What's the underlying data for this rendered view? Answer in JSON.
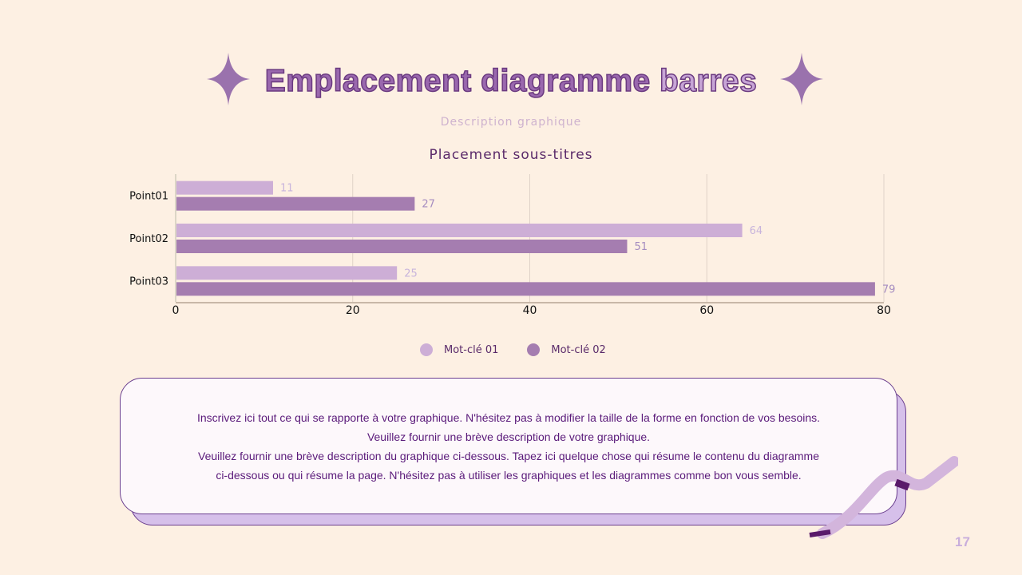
{
  "title_main": "Emplacement diagramme",
  "title_accent": "barres",
  "description": "Description graphique",
  "chart_data": {
    "type": "bar",
    "orientation": "horizontal",
    "title": "Placement sous-titres",
    "categories": [
      "Point01",
      "Point02",
      "Point03"
    ],
    "series": [
      {
        "name": "Mot-clé 01",
        "values": [
          11,
          64,
          25
        ],
        "color": "#cdaed6"
      },
      {
        "name": "Mot-clé 02",
        "values": [
          27,
          51,
          79
        ],
        "color": "#a57db0"
      }
    ],
    "xlim": [
      0,
      80
    ],
    "xticks": [
      0,
      20,
      40,
      60,
      80
    ],
    "grid": true,
    "legend": "bottom"
  },
  "body_lines": [
    "Inscrivez ici tout ce qui se rapporte à votre graphique. N'hésitez pas à modifier la taille de la forme en fonction de vos besoins.",
    "Veuillez fournir une brève description de votre graphique.",
    "Veuillez fournir une brève description du graphique ci-dessous. Tapez ici quelque chose qui résume le contenu du diagramme",
    "ci-dessous ou qui résume la page. N'hésitez pas à utiliser les graphiques et les diagrammes comme bon vous semble."
  ],
  "page_number": "17"
}
